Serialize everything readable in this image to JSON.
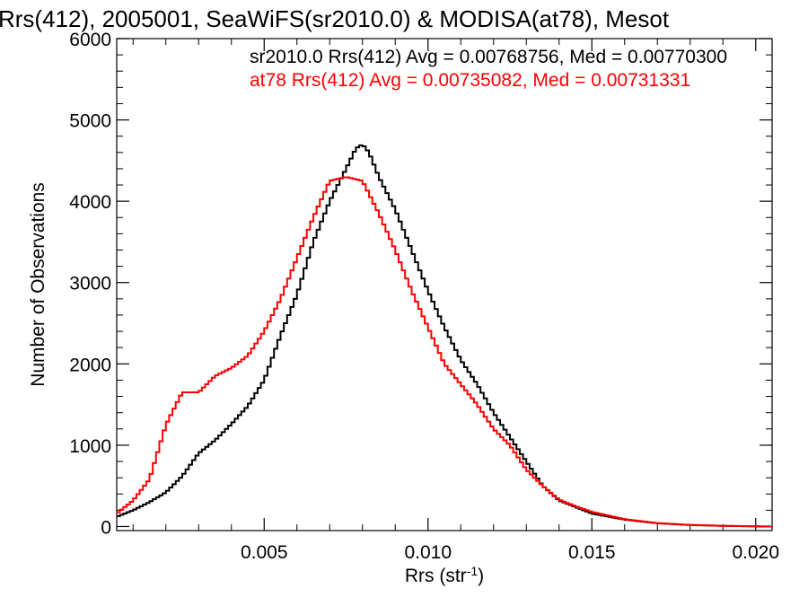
{
  "chart_data": {
    "type": "line",
    "step": true,
    "title": "Rrs(412), 2005001, SeaWiFS(sr2010.0) & MODISA(at78), Mesot",
    "xlabel_main": "Rrs (str",
    "xlabel_sup": "-1",
    "xlabel_close": ")",
    "ylabel": "Number of Observations",
    "xlim": [
      0.0005,
      0.0205
    ],
    "ylim": [
      -50,
      6000
    ],
    "xticks": [
      0.005,
      0.01,
      0.015,
      0.02
    ],
    "xtick_labels": [
      "0.005",
      "0.010",
      "0.015",
      "0.020"
    ],
    "yticks": [
      0,
      1000,
      2000,
      3000,
      4000,
      5000,
      6000
    ],
    "ytick_labels": [
      "0",
      "1000",
      "2000",
      "3000",
      "4000",
      "5000",
      "6000"
    ],
    "legend": [
      {
        "text": "sr2010.0 Rrs(412) Avg = 0.00768756, Med = 0.00770300",
        "color": "#000000"
      },
      {
        "text": "at78 Rrs(412) Avg = 0.00735082, Med = 0.00731331",
        "color": "#ff0000"
      }
    ],
    "series": [
      {
        "color": "#000000",
        "points": [
          [
            0.0005,
            120
          ],
          [
            0.001,
            200
          ],
          [
            0.0015,
            300
          ],
          [
            0.002,
            420
          ],
          [
            0.0025,
            620
          ],
          [
            0.003,
            900
          ],
          [
            0.0035,
            1060
          ],
          [
            0.004,
            1260
          ],
          [
            0.0045,
            1480
          ],
          [
            0.005,
            1800
          ],
          [
            0.0055,
            2350
          ],
          [
            0.006,
            2850
          ],
          [
            0.0065,
            3500
          ],
          [
            0.007,
            4000
          ],
          [
            0.0075,
            4400
          ],
          [
            0.0078,
            4650
          ],
          [
            0.008,
            4700
          ],
          [
            0.0082,
            4600
          ],
          [
            0.0085,
            4300
          ],
          [
            0.009,
            3900
          ],
          [
            0.0095,
            3400
          ],
          [
            0.01,
            2900
          ],
          [
            0.0105,
            2450
          ],
          [
            0.011,
            2050
          ],
          [
            0.0115,
            1750
          ],
          [
            0.012,
            1400
          ],
          [
            0.0125,
            1100
          ],
          [
            0.013,
            800
          ],
          [
            0.0135,
            500
          ],
          [
            0.014,
            320
          ],
          [
            0.0145,
            240
          ],
          [
            0.015,
            160
          ],
          [
            0.016,
            85
          ],
          [
            0.017,
            40
          ],
          [
            0.018,
            18
          ],
          [
            0.019,
            8
          ],
          [
            0.02,
            2
          ],
          [
            0.0205,
            0
          ]
        ]
      },
      {
        "color": "#ff0000",
        "points": [
          [
            0.0005,
            160
          ],
          [
            0.001,
            320
          ],
          [
            0.0015,
            580
          ],
          [
            0.002,
            1250
          ],
          [
            0.0025,
            1650
          ],
          [
            0.003,
            1650
          ],
          [
            0.0035,
            1850
          ],
          [
            0.004,
            1950
          ],
          [
            0.0045,
            2100
          ],
          [
            0.005,
            2400
          ],
          [
            0.0055,
            2800
          ],
          [
            0.006,
            3300
          ],
          [
            0.0065,
            3800
          ],
          [
            0.007,
            4250
          ],
          [
            0.0075,
            4300
          ],
          [
            0.008,
            4250
          ],
          [
            0.0085,
            3850
          ],
          [
            0.009,
            3400
          ],
          [
            0.0095,
            2900
          ],
          [
            0.01,
            2450
          ],
          [
            0.0105,
            2000
          ],
          [
            0.011,
            1750
          ],
          [
            0.0115,
            1500
          ],
          [
            0.012,
            1200
          ],
          [
            0.0125,
            1000
          ],
          [
            0.013,
            700
          ],
          [
            0.0135,
            500
          ],
          [
            0.014,
            330
          ],
          [
            0.0145,
            250
          ],
          [
            0.015,
            180
          ],
          [
            0.016,
            90
          ],
          [
            0.017,
            42
          ],
          [
            0.018,
            20
          ],
          [
            0.019,
            9
          ],
          [
            0.02,
            3
          ],
          [
            0.0205,
            0
          ]
        ]
      }
    ]
  }
}
